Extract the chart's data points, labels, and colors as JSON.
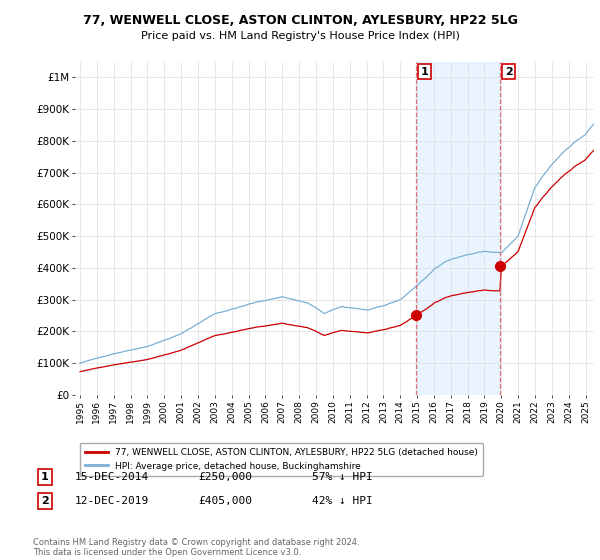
{
  "title": "77, WENWELL CLOSE, ASTON CLINTON, AYLESBURY, HP22 5LG",
  "subtitle": "Price paid vs. HM Land Registry's House Price Index (HPI)",
  "sale1_year": 2014.96,
  "sale1_price": 250000,
  "sale1_label": "1",
  "sale1_date": "15-DEC-2014",
  "sale1_hpi_pct": "57% ↓ HPI",
  "sale2_year": 2019.95,
  "sale2_price": 405000,
  "sale2_label": "2",
  "sale2_date": "12-DEC-2019",
  "sale2_hpi_pct": "42% ↓ HPI",
  "red_line_color": "#cc0000",
  "blue_line_color": "#7ab0d4",
  "shade_color": "#ddeeff",
  "dashed_color": "#dd5555",
  "ylim": [
    0,
    1050000
  ],
  "yticks": [
    0,
    100000,
    200000,
    300000,
    400000,
    500000,
    600000,
    700000,
    800000,
    900000,
    1000000
  ],
  "ytick_labels": [
    "£0",
    "£100K",
    "£200K",
    "£300K",
    "£400K",
    "£500K",
    "£600K",
    "£700K",
    "£800K",
    "£900K",
    "£1M"
  ],
  "xlim_left": 1994.7,
  "xlim_right": 2025.5,
  "xticks": [
    1995,
    1996,
    1997,
    1998,
    1999,
    2000,
    2001,
    2002,
    2003,
    2004,
    2005,
    2006,
    2007,
    2008,
    2009,
    2010,
    2011,
    2012,
    2013,
    2014,
    2015,
    2016,
    2017,
    2018,
    2019,
    2020,
    2021,
    2022,
    2023,
    2024,
    2025
  ],
  "background_color": "#ffffff",
  "grid_color": "#dddddd",
  "legend_label_red": "77, WENWELL CLOSE, ASTON CLINTON, AYLESBURY, HP22 5LG (detached house)",
  "legend_label_blue": "HPI: Average price, detached house, Buckinghamshire",
  "footer": "Contains HM Land Registry data © Crown copyright and database right 2024.\nThis data is licensed under the Open Government Licence v3.0."
}
